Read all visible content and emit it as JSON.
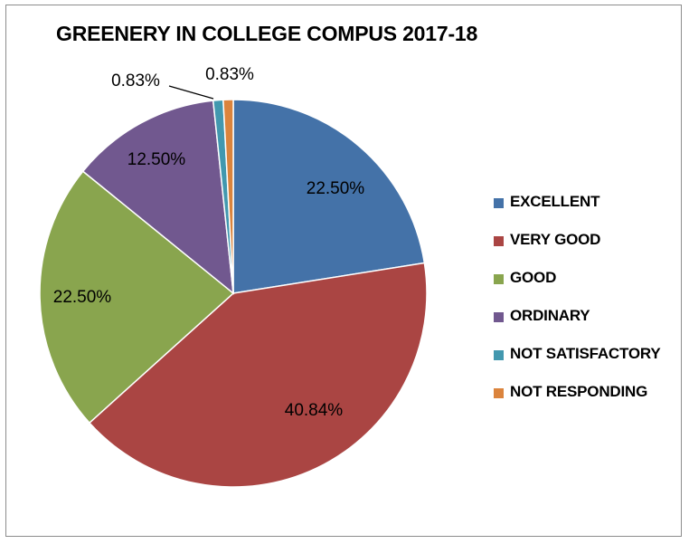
{
  "chart_data": {
    "type": "pie",
    "title": "GREENERY IN COLLEGE COMPUS 2017-18",
    "legend_position": "right",
    "slices": [
      {
        "label": "EXCELLENT",
        "value": 22.5,
        "value_label": "22.50%",
        "color": "#4472a8"
      },
      {
        "label": "VERY GOOD",
        "value": 40.84,
        "value_label": "40.84%",
        "color": "#aa4543"
      },
      {
        "label": "GOOD",
        "value": 22.5,
        "value_label": "22.50%",
        "color": "#89a54e"
      },
      {
        "label": "ORDINARY",
        "value": 12.5,
        "value_label": "12.50%",
        "color": "#71588f"
      },
      {
        "label": "NOT SATISFACTORY",
        "value": 0.83,
        "value_label": "0.83%",
        "color": "#4298af"
      },
      {
        "label": "NOT RESPONDING",
        "value": 0.83,
        "value_label": "0.83%",
        "color": "#db843d"
      }
    ]
  }
}
